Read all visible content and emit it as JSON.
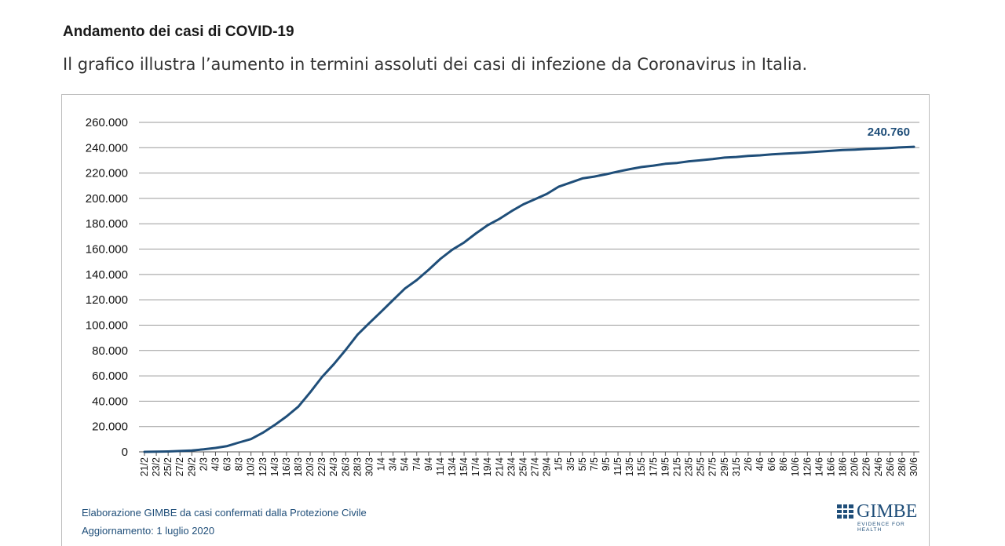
{
  "page": {
    "heading": "Andamento dei casi di COVID-19",
    "subheading": "Il grafico illustra l’aumento in termini assoluti dei casi di infezione da Coronavirus in Italia."
  },
  "source": {
    "line1": "Elaborazione GIMBE da casi confermati dalla Protezione Civile",
    "line2": "Aggiornamento: 1 luglio 2020"
  },
  "logo": {
    "name": "GIMBE",
    "tagline": "EVIDENCE FOR HEALTH"
  },
  "colors": {
    "line": "#1f4e79",
    "grid": "#9a9a9a",
    "annotation": "#1f4e79"
  },
  "chart_data": {
    "type": "line",
    "title": "",
    "xlabel": "",
    "ylabel": "",
    "ylim": [
      0,
      260000
    ],
    "yticks": [
      0,
      20000,
      40000,
      60000,
      80000,
      100000,
      120000,
      140000,
      160000,
      180000,
      200000,
      220000,
      240000,
      260000
    ],
    "ytick_labels": [
      "0",
      "20.000",
      "40.000",
      "60.000",
      "80.000",
      "100.000",
      "120.000",
      "140.000",
      "160.000",
      "180.000",
      "200.000",
      "220.000",
      "240.000",
      "260.000"
    ],
    "grid": true,
    "legend": "none",
    "x_tick_labels": [
      "21/2",
      "23/2",
      "25/2",
      "27/2",
      "29/2",
      "2/3",
      "4/3",
      "6/3",
      "8/3",
      "10/3",
      "12/3",
      "14/3",
      "16/3",
      "18/3",
      "20/3",
      "22/3",
      "24/3",
      "26/3",
      "28/3",
      "30/3",
      "1/4",
      "3/4",
      "5/4",
      "7/4",
      "9/4",
      "11/4",
      "13/4",
      "15/4",
      "17/4",
      "19/4",
      "21/4",
      "23/4",
      "25/4",
      "27/4",
      "29/4",
      "1/5",
      "3/5",
      "5/5",
      "7/5",
      "9/5",
      "11/5",
      "13/5",
      "15/5",
      "17/5",
      "19/5",
      "21/5",
      "23/5",
      "25/5",
      "27/5",
      "29/5",
      "31/5",
      "2/6",
      "4/6",
      "6/6",
      "8/6",
      "10/6",
      "12/6",
      "14/6",
      "16/6",
      "18/6",
      "20/6",
      "22/6",
      "24/6",
      "26/6",
      "28/6",
      "30/6"
    ],
    "annotation": "240.760",
    "series": [
      {
        "x": [
          "21/2",
          "23/2",
          "25/2",
          "27/2",
          "29/2",
          "2/3",
          "4/3",
          "6/3",
          "8/3",
          "10/3",
          "12/3",
          "14/3",
          "16/3",
          "18/3",
          "20/3",
          "22/3",
          "24/3",
          "26/3",
          "28/3",
          "30/3",
          "1/4",
          "3/4",
          "5/4",
          "7/4",
          "9/4",
          "11/4",
          "13/4",
          "15/4",
          "17/4",
          "19/4",
          "21/4",
          "23/4",
          "25/4",
          "27/4",
          "29/4",
          "1/5",
          "3/5",
          "5/5",
          "7/5",
          "9/5",
          "11/5",
          "13/5",
          "15/5",
          "17/5",
          "19/5",
          "21/5",
          "23/5",
          "25/5",
          "27/5",
          "29/5",
          "31/5",
          "2/6",
          "4/6",
          "6/6",
          "8/6",
          "10/6",
          "12/6",
          "14/6",
          "16/6",
          "18/6",
          "20/6",
          "22/6",
          "24/6",
          "26/6",
          "28/6",
          "30/6"
        ],
        "values": [
          20,
          150,
          300,
          650,
          1100,
          2000,
          3100,
          4600,
          7400,
          10100,
          15100,
          21200,
          27900,
          35700,
          47000,
          59100,
          69200,
          80500,
          92500,
          101700,
          110600,
          119800,
          128900,
          135600,
          143600,
          152300,
          159500,
          165200,
          172400,
          178900,
          183900,
          189900,
          195300,
          199400,
          203600,
          209300,
          212500,
          215800,
          217200,
          219100,
          221200,
          223100,
          224800,
          225900,
          227300,
          228000,
          229300,
          230100,
          231000,
          232200,
          232700,
          233500,
          234000,
          234800,
          235300,
          235800,
          236300,
          237000,
          237500,
          238200,
          238500,
          239000,
          239400,
          239800,
          240400,
          240760
        ]
      }
    ]
  }
}
